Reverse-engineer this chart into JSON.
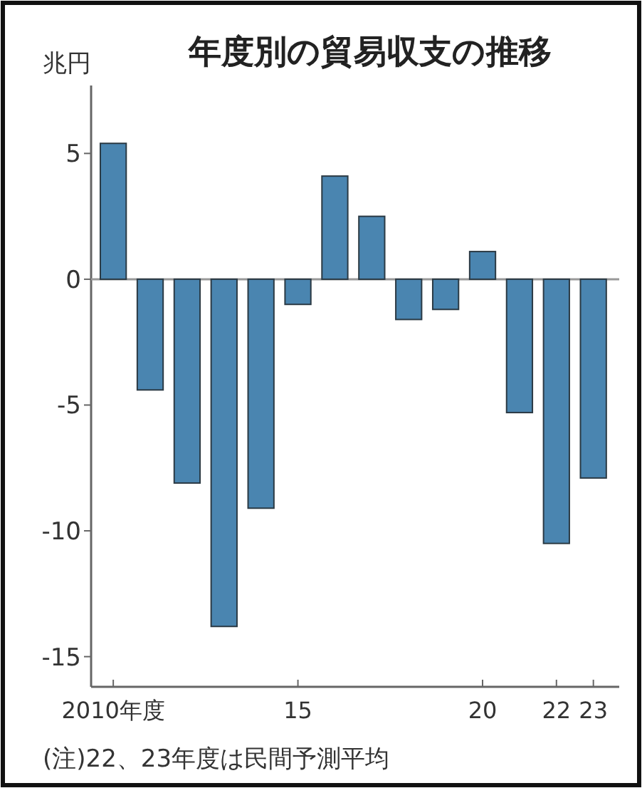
{
  "chart_data": {
    "type": "bar",
    "title": "年度別の貿易収支の推移",
    "ylabel": "兆円",
    "x": [
      2010,
      2011,
      2012,
      2013,
      2014,
      2015,
      2016,
      2017,
      2018,
      2019,
      2020,
      2021,
      2022,
      2023
    ],
    "values": [
      5.4,
      -4.4,
      -8.1,
      -13.8,
      -9.1,
      -1.0,
      4.1,
      2.5,
      -1.6,
      -1.2,
      1.1,
      -5.3,
      -10.5,
      -7.9
    ],
    "color": "#4a85b0",
    "xlim": [
      2009.4,
      2023.7
    ],
    "xticks": [
      {
        "value": 2010,
        "label": "2010年度"
      },
      {
        "value": 2015,
        "label": "15"
      },
      {
        "value": 2020,
        "label": "20"
      },
      {
        "value": 2022,
        "label": "22"
      },
      {
        "value": 2023,
        "label": "23"
      }
    ],
    "ylim": [
      -16.2,
      7.7
    ],
    "yticks": [
      -15,
      -10,
      -5,
      0,
      5
    ],
    "ref_lines": [
      {
        "axis": "y",
        "value": 0,
        "color": "#999999"
      }
    ],
    "grid": false,
    "annotations": [
      "(注)22、23年度は民間予測平均"
    ]
  }
}
